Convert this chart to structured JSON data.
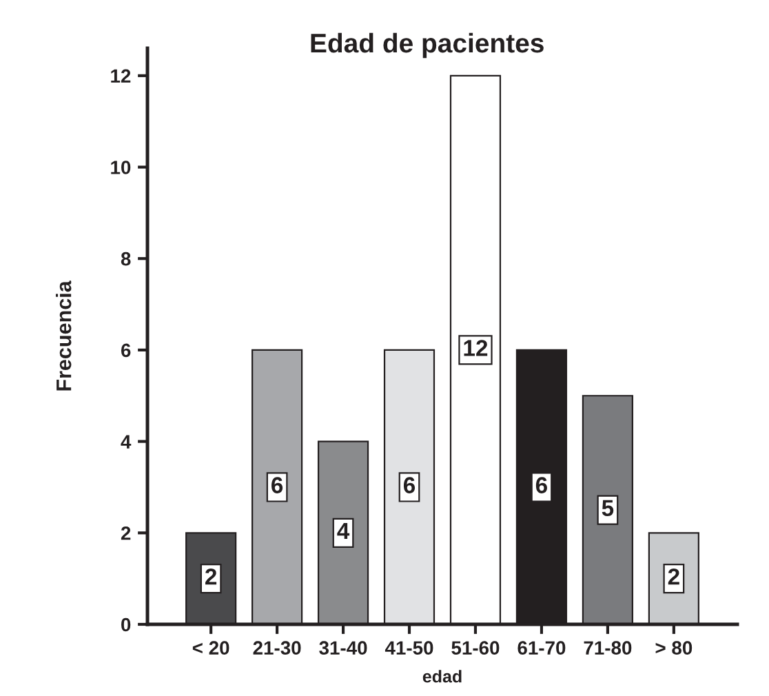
{
  "chart_data": {
    "type": "bar",
    "title": "Edad de pacientes",
    "xlabel": "edad",
    "ylabel": "Frecuencia",
    "categories": [
      "< 20",
      "21-30",
      "31-40",
      "41-50",
      "51-60",
      "61-70",
      "71-80",
      "> 80"
    ],
    "values": [
      2,
      6,
      4,
      6,
      12,
      6,
      5,
      2
    ],
    "colors": [
      "#4a4a4c",
      "#a7a8ab",
      "#8a8b8d",
      "#e1e2e4",
      "#ffffff",
      "#231f20",
      "#7a7b7e",
      "#c8cacc"
    ],
    "ylim": [
      0,
      12.6
    ],
    "yticks": [
      0,
      2,
      4,
      6,
      8,
      10,
      12
    ],
    "data_labels": true,
    "grid": false,
    "legend": false
  }
}
